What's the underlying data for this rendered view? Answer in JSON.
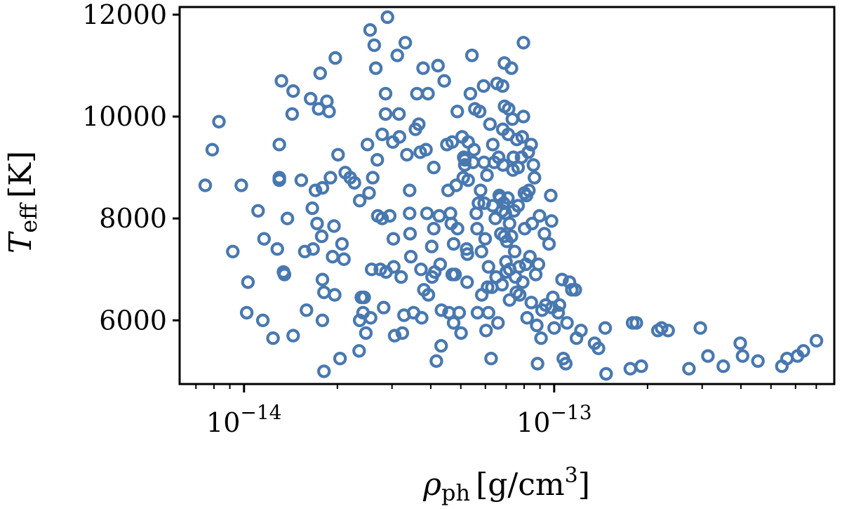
{
  "chart_data": {
    "type": "scatter",
    "title": "",
    "marker": "hollow-circle",
    "color": "#4878b0",
    "xscale": "log",
    "xlim": [
      6.2e-15,
      8e-13
    ],
    "ylim": [
      4750,
      12150
    ],
    "xlabel": {
      "symbol": "ρ",
      "subscript": "ph",
      "unit": "[g/cm",
      "unit_sup": "3",
      "unit_close": "]"
    },
    "ylabel": {
      "symbol": "T",
      "subscript": "eff",
      "unit": "[K]"
    },
    "y_ticks": [
      {
        "value": 6000,
        "label": "6000"
      },
      {
        "value": 8000,
        "label": "8000"
      },
      {
        "value": 10000,
        "label": "10000"
      },
      {
        "value": 12000,
        "label": "12000"
      }
    ],
    "x_major_ticks": [
      {
        "value": 1e-14,
        "base": "10",
        "exponent": "−14"
      },
      {
        "value": 1e-13,
        "base": "10",
        "exponent": "−13"
      }
    ],
    "x_minor_ticks": [
      7e-15,
      8e-15,
      9e-15,
      2e-14,
      3e-14,
      4e-14,
      5e-14,
      6e-14,
      7e-14,
      8e-14,
      9e-14,
      2e-13,
      3e-13,
      4e-13,
      5e-13,
      6e-13,
      7e-13
    ],
    "points": [
      [
        7.5e-15,
        8650
      ],
      [
        7.9e-15,
        9350
      ],
      [
        8.3e-15,
        9900
      ],
      [
        9.2e-15,
        7350
      ],
      [
        9.8e-15,
        8650
      ],
      [
        1.02e-14,
        6150
      ],
      [
        1.03e-14,
        6750
      ],
      [
        1.11e-14,
        8150
      ],
      [
        1.16e-14,
        7600
      ],
      [
        1.15e-14,
        6000
      ],
      [
        1.24e-14,
        5650
      ],
      [
        1.28e-14,
        7400
      ],
      [
        1.3e-14,
        9450
      ],
      [
        1.3e-14,
        8800
      ],
      [
        1.3e-14,
        8750
      ],
      [
        1.32e-14,
        10700
      ],
      [
        1.34e-14,
        6950
      ],
      [
        1.35e-14,
        6900
      ],
      [
        1.38e-14,
        8000
      ],
      [
        1.43e-14,
        10050
      ],
      [
        1.44e-14,
        10500
      ],
      [
        1.44e-14,
        5700
      ],
      [
        1.53e-14,
        8750
      ],
      [
        1.59e-14,
        6200
      ],
      [
        1.57e-14,
        7350
      ],
      [
        1.64e-14,
        10350
      ],
      [
        1.66e-14,
        8200
      ],
      [
        1.67e-14,
        7400
      ],
      [
        1.7e-14,
        8550
      ],
      [
        1.72e-14,
        7900
      ],
      [
        1.74e-14,
        10150
      ],
      [
        1.76e-14,
        10850
      ],
      [
        1.78e-14,
        7650
      ],
      [
        1.79e-14,
        8600
      ],
      [
        1.81e-14,
        6550
      ],
      [
        1.79e-14,
        6800
      ],
      [
        1.79e-14,
        6000
      ],
      [
        1.85e-14,
        10300
      ],
      [
        1.88e-14,
        10100
      ],
      [
        1.9e-14,
        8800
      ],
      [
        1.93e-14,
        7250
      ],
      [
        1.95e-14,
        7850
      ],
      [
        1.97e-14,
        11150
      ],
      [
        1.96e-14,
        6500
      ],
      [
        2.01e-14,
        9250
      ],
      [
        2.04e-14,
        5250
      ],
      [
        2.07e-14,
        7500
      ],
      [
        2.1e-14,
        7200
      ],
      [
        2.12e-14,
        8900
      ],
      [
        1.81e-14,
        5000
      ],
      [
        2.2e-14,
        8800
      ],
      [
        2.27e-14,
        8700
      ],
      [
        2.36e-14,
        8350
      ],
      [
        2.35e-14,
        5400
      ],
      [
        2.36e-14,
        6000
      ],
      [
        2.39e-14,
        6450
      ],
      [
        2.44e-14,
        6450
      ],
      [
        2.42e-14,
        6150
      ],
      [
        2.47e-14,
        5750
      ],
      [
        2.5e-14,
        9450
      ],
      [
        2.53e-14,
        8500
      ],
      [
        2.55e-14,
        11700
      ],
      [
        2.56e-14,
        6050
      ],
      [
        2.58e-14,
        7000
      ],
      [
        2.6e-14,
        8800
      ],
      [
        2.63e-14,
        11400
      ],
      [
        2.66e-14,
        10950
      ],
      [
        2.69e-14,
        9150
      ],
      [
        2.7e-14,
        8050
      ],
      [
        2.75e-14,
        7000
      ],
      [
        2.79e-14,
        9650
      ],
      [
        2.79e-14,
        8000
      ],
      [
        2.82e-14,
        6250
      ],
      [
        2.86e-14,
        10450
      ],
      [
        2.86e-14,
        10050
      ],
      [
        2.87e-14,
        6950
      ],
      [
        2.9e-14,
        11950
      ],
      [
        2.95e-14,
        8050
      ],
      [
        3.02e-14,
        9500
      ],
      [
        3.03e-14,
        7600
      ],
      [
        3.04e-14,
        7050
      ],
      [
        3.06e-14,
        5700
      ],
      [
        3.12e-14,
        11200
      ],
      [
        3.16e-14,
        10050
      ],
      [
        3.17e-14,
        9600
      ],
      [
        3.21e-14,
        6850
      ],
      [
        3.24e-14,
        5750
      ],
      [
        3.28e-14,
        6100
      ],
      [
        3.31e-14,
        11450
      ],
      [
        3.35e-14,
        9250
      ],
      [
        3.42e-14,
        8550
      ],
      [
        3.42e-14,
        8100
      ],
      [
        3.43e-14,
        7700
      ],
      [
        3.45e-14,
        7250
      ],
      [
        3.52e-14,
        6150
      ],
      [
        3.57e-14,
        9750
      ],
      [
        3.61e-14,
        10450
      ],
      [
        3.66e-14,
        9850
      ],
      [
        3.7e-14,
        9300
      ],
      [
        3.72e-14,
        7000
      ],
      [
        3.74e-14,
        6050
      ],
      [
        3.78e-14,
        10950
      ],
      [
        3.8e-14,
        6600
      ],
      [
        3.86e-14,
        9350
      ],
      [
        3.89e-14,
        8100
      ],
      [
        3.92e-14,
        10450
      ],
      [
        3.93e-14,
        6500
      ],
      [
        4.03e-14,
        7450
      ],
      [
        4.04e-14,
        6850
      ],
      [
        4.09e-14,
        9000
      ],
      [
        4.09e-14,
        7800
      ],
      [
        4.12e-14,
        6950
      ],
      [
        4.17e-14,
        5200
      ],
      [
        4.22e-14,
        11000
      ],
      [
        4.26e-14,
        8050
      ],
      [
        4.29e-14,
        7100
      ],
      [
        4.33e-14,
        6200
      ],
      [
        4.32e-14,
        5500
      ],
      [
        4.42e-14,
        10700
      ],
      [
        4.51e-14,
        9450
      ],
      [
        4.55e-14,
        8550
      ],
      [
        4.58e-14,
        6150
      ],
      [
        4.63e-14,
        8100
      ],
      [
        4.66e-14,
        7900
      ],
      [
        4.69e-14,
        9500
      ],
      [
        4.69e-14,
        6900
      ],
      [
        4.74e-14,
        7500
      ],
      [
        4.74e-14,
        5950
      ],
      [
        4.83e-14,
        8650
      ],
      [
        4.87e-14,
        10100
      ],
      [
        4.88e-14,
        7800
      ],
      [
        4.94e-14,
        6150
      ],
      [
        5.01e-14,
        5750
      ],
      [
        5.05e-14,
        9600
      ],
      [
        5.09e-14,
        8800
      ],
      [
        5.11e-14,
        9200
      ],
      [
        5.15e-14,
        9050
      ],
      [
        5.15e-14,
        9150
      ],
      [
        5.22e-14,
        7400
      ],
      [
        5.24e-14,
        6750
      ],
      [
        5.28e-14,
        9500
      ],
      [
        5.28e-14,
        8750
      ],
      [
        5.37e-14,
        10450
      ],
      [
        5.43e-14,
        11200
      ],
      [
        5.47e-14,
        9100
      ],
      [
        5.51e-14,
        9350
      ],
      [
        5.55e-14,
        10150
      ],
      [
        5.61e-14,
        8100
      ],
      [
        5.64e-14,
        7800
      ],
      [
        5.66e-14,
        6150
      ],
      [
        5.7e-14,
        8300
      ],
      [
        5.75e-14,
        10100
      ],
      [
        5.79e-14,
        8550
      ],
      [
        5.83e-14,
        7350
      ],
      [
        5.84e-14,
        6500
      ],
      [
        5.92e-14,
        10600
      ],
      [
        5.94e-14,
        9100
      ],
      [
        5.95e-14,
        8300
      ],
      [
        5.99e-14,
        7600
      ],
      [
        6.03e-14,
        5800
      ],
      [
        6.07e-14,
        8850
      ],
      [
        6.1e-14,
        6650
      ],
      [
        6.14e-14,
        7050
      ],
      [
        6.21e-14,
        9850
      ],
      [
        6.26e-14,
        5250
      ],
      [
        6.3e-14,
        6650
      ],
      [
        6.34e-14,
        9450
      ],
      [
        6.34e-14,
        8250
      ],
      [
        6.41e-14,
        9100
      ],
      [
        6.46e-14,
        8000
      ],
      [
        6.5e-14,
        6850
      ],
      [
        6.54e-14,
        10650
      ],
      [
        6.59e-14,
        5950
      ],
      [
        6.62e-14,
        9200
      ],
      [
        6.65e-14,
        8450
      ],
      [
        6.69e-14,
        8400
      ],
      [
        6.73e-14,
        7700
      ],
      [
        6.79e-14,
        8150
      ],
      [
        6.79e-14,
        6700
      ],
      [
        6.82e-14,
        10600
      ],
      [
        6.83e-14,
        9750
      ],
      [
        6.84e-14,
        9050
      ],
      [
        6.87e-14,
        8300
      ],
      [
        6.91e-14,
        7650
      ],
      [
        6.91e-14,
        11050
      ],
      [
        6.92e-14,
        10200
      ],
      [
        6.96e-14,
        8100
      ],
      [
        6.99e-14,
        7150
      ],
      [
        7.01e-14,
        6950
      ],
      [
        7.04e-14,
        7550
      ],
      [
        7.09e-14,
        8400
      ],
      [
        7.11e-14,
        9650
      ],
      [
        7.13e-14,
        10150
      ],
      [
        7.18e-14,
        6400
      ],
      [
        7.18e-14,
        7900
      ],
      [
        7.19e-14,
        7000
      ],
      [
        7.28e-14,
        10950
      ],
      [
        7.28e-14,
        7650
      ],
      [
        7.33e-14,
        9950
      ],
      [
        7.36e-14,
        8950
      ],
      [
        7.39e-14,
        9200
      ],
      [
        7.42e-14,
        8150
      ],
      [
        7.46e-14,
        7350
      ],
      [
        7.5e-14,
        6850
      ],
      [
        7.55e-14,
        6550
      ],
      [
        7.58e-14,
        9550
      ],
      [
        7.65e-14,
        9000
      ],
      [
        7.65e-14,
        8250
      ],
      [
        7.72e-14,
        7050
      ],
      [
        7.74e-14,
        6500
      ],
      [
        7.85e-14,
        9200
      ],
      [
        7.89e-14,
        9600
      ],
      [
        7.92e-14,
        6750
      ],
      [
        7.96e-14,
        11450
      ],
      [
        7.96e-14,
        10000
      ],
      [
        8.02e-14,
        8500
      ],
      [
        8.03e-14,
        7800
      ],
      [
        8.1e-14,
        7100
      ],
      [
        8.14e-14,
        8450
      ],
      [
        8.18e-14,
        6050
      ],
      [
        8.25e-14,
        9300
      ],
      [
        8.29e-14,
        8550
      ],
      [
        8.35e-14,
        7250
      ],
      [
        8.43e-14,
        9450
      ],
      [
        8.44e-14,
        6350
      ],
      [
        8.49e-14,
        7900
      ],
      [
        8.57e-14,
        9050
      ],
      [
        8.64e-14,
        8800
      ],
      [
        8.72e-14,
        6900
      ],
      [
        8.79e-14,
        5900
      ],
      [
        8.84e-14,
        5150
      ],
      [
        8.9e-14,
        7100
      ],
      [
        8.97e-14,
        8050
      ],
      [
        9.07e-14,
        5650
      ],
      [
        9.14e-14,
        6200
      ],
      [
        9.3e-14,
        7700
      ],
      [
        9.39e-14,
        6300
      ],
      [
        9.62e-14,
        7500
      ],
      [
        9.75e-14,
        8450
      ],
      [
        9.81e-14,
        7950
      ],
      [
        9.83e-14,
        6250
      ],
      [
        9.9e-14,
        6450
      ],
      [
        1e-13,
        5850
      ],
      [
        1.03e-13,
        6150
      ],
      [
        1.04e-13,
        6300
      ],
      [
        1.06e-13,
        6800
      ],
      [
        1.07e-13,
        5250
      ],
      [
        1.09e-13,
        5150
      ],
      [
        1.1e-13,
        5950
      ],
      [
        1.12e-13,
        6750
      ],
      [
        1.14e-13,
        6600
      ],
      [
        1.17e-13,
        6600
      ],
      [
        1.18e-13,
        5650
      ],
      [
        1.22e-13,
        5800
      ],
      [
        1.35e-13,
        5550
      ],
      [
        1.39e-13,
        5450
      ],
      [
        1.46e-13,
        5850
      ],
      [
        1.47e-13,
        4950
      ],
      [
        1.76e-13,
        5050
      ],
      [
        1.79e-13,
        5950
      ],
      [
        1.84e-13,
        5950
      ],
      [
        1.91e-13,
        5100
      ],
      [
        2.16e-13,
        5800
      ],
      [
        2.22e-13,
        5850
      ],
      [
        2.33e-13,
        5800
      ],
      [
        2.72e-13,
        5050
      ],
      [
        2.96e-13,
        5850
      ],
      [
        3.13e-13,
        5300
      ],
      [
        3.51e-13,
        5100
      ],
      [
        3.98e-13,
        5550
      ],
      [
        4.05e-13,
        5300
      ],
      [
        4.54e-13,
        5200
      ],
      [
        5.42e-13,
        5100
      ],
      [
        5.63e-13,
        5250
      ],
      [
        6.09e-13,
        5300
      ],
      [
        6.36e-13,
        5400
      ],
      [
        7.01e-13,
        5600
      ],
      [
        6.14e-14,
        6150
      ],
      [
        5.25e-14,
        7300
      ],
      [
        4.79e-14,
        6900
      ]
    ]
  }
}
